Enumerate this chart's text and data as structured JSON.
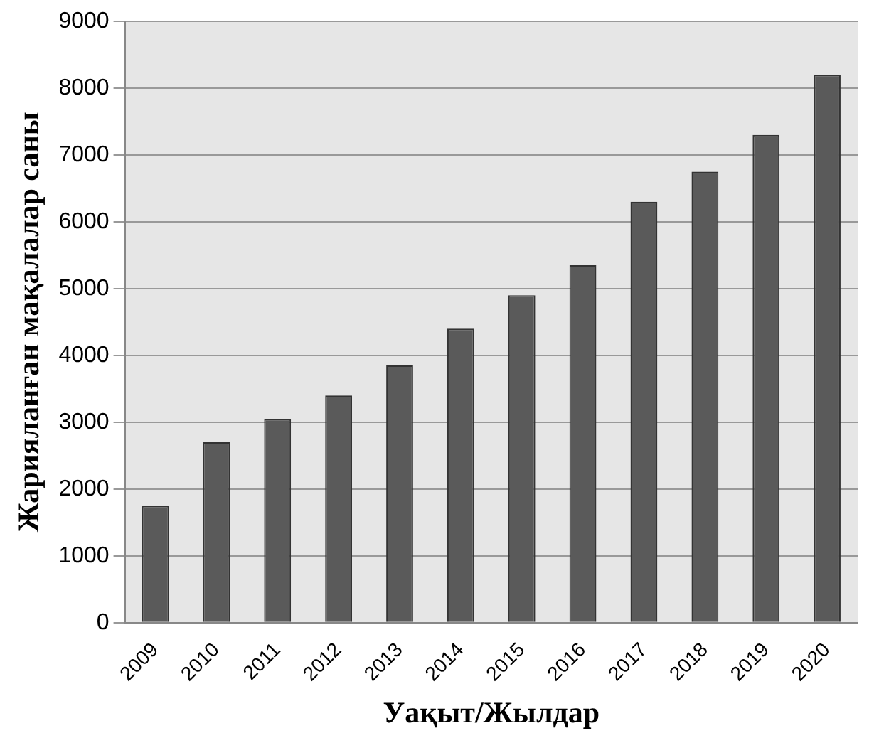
{
  "chart_data": {
    "type": "bar",
    "xlabel": "Уақыт/Жылдар",
    "ylabel": "Жарияланған мақалалар саны",
    "categories": [
      "2009",
      "2010",
      "2011",
      "2012",
      "2013",
      "2014",
      "2015",
      "2016",
      "2017",
      "2018",
      "2019",
      "2020"
    ],
    "values": [
      1750,
      2700,
      3050,
      3400,
      3850,
      4400,
      4900,
      5350,
      6300,
      6750,
      7300,
      8200
    ],
    "color": "#5a5a5a",
    "ylim": [
      0,
      9000
    ],
    "yticks": [
      0,
      1000,
      2000,
      3000,
      4000,
      5000,
      6000,
      7000,
      8000,
      9000
    ],
    "grid": "y",
    "legend": false
  }
}
